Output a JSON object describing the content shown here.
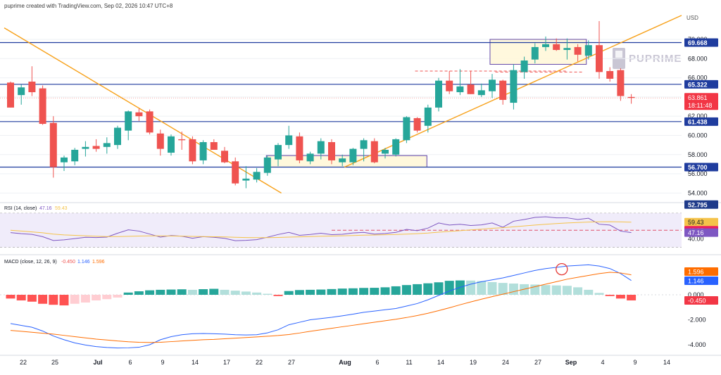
{
  "header": {
    "credit": "puprime created with TradingView.com, Sep 02, 2026 10:47 UTC+8"
  },
  "brand": {
    "name": "PUPRIME"
  },
  "price_panel": {
    "currency_label": "USD",
    "axis_ticks": [
      "54.000",
      "56.000",
      "58.000",
      "60.000",
      "62.000",
      "64.000",
      "66.000",
      "68.000",
      "70.000"
    ],
    "level_labels": [
      "69.668",
      "65.322",
      "61.438",
      "56.700",
      "52.795"
    ],
    "last_price": "63.861",
    "countdown": "18:11:48"
  },
  "rsi_panel": {
    "legend_title": "RSI (14, close)",
    "legend_values": [
      "47.16",
      "59.43"
    ],
    "axis_ticks": [
      "40.00"
    ],
    "value_labels": [
      "59.43",
      "49.97",
      "47.16"
    ]
  },
  "macd_panel": {
    "legend_title": "MACD (close, 12, 26, 9)",
    "legend_values": [
      "-0.450",
      "1.146",
      "1.596"
    ],
    "axis_ticks": [
      "0.000",
      "-2.000",
      "-4.000"
    ],
    "value_labels": [
      "1.596",
      "1.146",
      "-0.450"
    ]
  },
  "x_axis": {
    "labels": [
      "22",
      "25",
      "Jul",
      "6",
      "9",
      "14",
      "17",
      "22",
      "27",
      "Aug",
      "6",
      "11",
      "14",
      "19",
      "24",
      "27",
      "Sep",
      "4",
      "9",
      "14"
    ]
  },
  "colors": {
    "bull": "#26a69a",
    "bear": "#ef5350",
    "level_line": "#1f3c9e",
    "trendline": "#f7a11a",
    "rsi_line": "#7e57c2",
    "rsi_ma": "#f5c34a",
    "macd_line": "#2962ff",
    "signal_line": "#ff6d00",
    "box": "#5b3fa6"
  },
  "chart_data": [
    {
      "type": "candlestick",
      "x_start": "Jun 19",
      "x_end": "Sep 02",
      "ylim": [
        51.0,
        71.5
      ],
      "ohlc": [
        [
          65.5,
          65.6,
          62.9,
          62.9
        ],
        [
          64.2,
          65.3,
          63.2,
          65.0
        ],
        [
          65.6,
          67.2,
          64.1,
          64.5
        ],
        [
          64.9,
          65.2,
          61.1,
          61.2
        ],
        [
          61.3,
          62.0,
          55.6,
          56.7
        ],
        [
          57.2,
          57.9,
          56.3,
          57.7
        ],
        [
          57.3,
          58.7,
          56.9,
          58.5
        ],
        [
          58.6,
          59.4,
          57.8,
          58.8
        ],
        [
          58.9,
          59.6,
          58.3,
          58.6
        ],
        [
          58.8,
          59.8,
          58.1,
          59.2
        ],
        [
          59.0,
          61.0,
          58.6,
          60.8
        ],
        [
          60.5,
          62.6,
          59.5,
          62.5
        ],
        [
          62.4,
          62.8,
          61.5,
          62.0
        ],
        [
          62.5,
          62.7,
          60.1,
          60.3
        ],
        [
          60.2,
          60.6,
          57.9,
          58.6
        ],
        [
          58.2,
          60.1,
          57.9,
          59.9
        ],
        [
          59.6,
          60.4,
          58.5,
          59.5
        ],
        [
          59.6,
          59.9,
          57.0,
          57.3
        ],
        [
          57.4,
          59.5,
          57.0,
          59.3
        ],
        [
          59.3,
          59.6,
          58.5,
          58.5
        ],
        [
          58.4,
          58.8,
          57.1,
          57.2
        ],
        [
          57.3,
          57.7,
          54.8,
          55.0
        ],
        [
          55.3,
          56.8,
          54.5,
          55.5
        ],
        [
          55.4,
          56.6,
          55.1,
          56.2
        ],
        [
          56.1,
          57.9,
          55.8,
          57.7
        ],
        [
          57.5,
          59.2,
          56.8,
          59.0
        ],
        [
          59.0,
          61.0,
          58.6,
          60.0
        ],
        [
          59.9,
          60.3,
          57.1,
          57.4
        ],
        [
          57.3,
          58.3,
          57.0,
          58.1
        ],
        [
          58.1,
          59.7,
          57.5,
          59.4
        ],
        [
          59.3,
          59.6,
          57.0,
          57.4
        ],
        [
          57.2,
          58.0,
          56.8,
          57.6
        ],
        [
          57.2,
          58.7,
          56.9,
          58.6
        ],
        [
          58.6,
          59.7,
          57.3,
          59.5
        ],
        [
          59.4,
          59.7,
          57.1,
          57.2
        ],
        [
          58.1,
          58.7,
          57.6,
          58.5
        ],
        [
          58.0,
          59.7,
          57.8,
          59.6
        ],
        [
          59.5,
          62.0,
          59.2,
          61.9
        ],
        [
          61.8,
          61.9,
          60.3,
          60.5
        ],
        [
          61.0,
          63.2,
          60.3,
          62.9
        ],
        [
          62.9,
          66.0,
          62.5,
          65.7
        ],
        [
          65.7,
          66.7,
          64.3,
          64.6
        ],
        [
          64.5,
          66.9,
          64.2,
          65.1
        ],
        [
          65.3,
          66.7,
          64.3,
          64.3
        ],
        [
          64.2,
          65.4,
          64.0,
          64.7
        ],
        [
          64.6,
          66.4,
          63.9,
          65.8
        ],
        [
          65.7,
          65.8,
          63.2,
          63.7
        ],
        [
          63.4,
          67.4,
          62.7,
          66.8
        ],
        [
          66.6,
          68.2,
          65.9,
          67.8
        ],
        [
          67.9,
          69.6,
          67.5,
          69.2
        ],
        [
          69.2,
          70.3,
          68.8,
          69.5
        ],
        [
          69.5,
          70.1,
          68.8,
          68.9
        ],
        [
          68.9,
          70.1,
          67.9,
          69.1
        ],
        [
          69.2,
          69.5,
          67.7,
          68.4
        ],
        [
          68.3,
          69.9,
          67.9,
          69.4
        ],
        [
          69.4,
          71.9,
          65.9,
          66.6
        ],
        [
          66.7,
          67.1,
          65.6,
          65.9
        ],
        [
          66.8,
          67.0,
          63.6,
          64.1
        ],
        [
          64.0,
          64.3,
          63.3,
          63.9
        ]
      ]
    },
    {
      "type": "line",
      "name": "RSI (14, close)",
      "ylim": [
        28,
        74
      ],
      "series": [
        {
          "name": "RSI",
          "values": [
            47.2,
            46.0,
            45.1,
            42.5,
            38.0,
            38.8,
            40.2,
            41.8,
            41.5,
            42.0,
            46.5,
            50.5,
            49.0,
            45.5,
            42.0,
            43.8,
            43.0,
            40.6,
            42.5,
            41.8,
            40.5,
            37.8,
            38.2,
            39.0,
            41.8,
            45.0,
            47.5,
            44.0,
            45.0,
            46.5,
            44.8,
            45.3,
            46.8,
            47.5,
            45.5,
            46.2,
            47.5,
            51.0,
            49.5,
            52.5,
            58.5,
            56.0,
            57.0,
            55.5,
            56.2,
            58.5,
            53.5,
            60.5,
            62.5,
            65.0,
            65.7,
            64.5,
            64.5,
            62.5,
            64.0,
            57.0,
            56.0,
            49.0,
            47.2
          ]
        },
        {
          "name": "RSI-based MA",
          "values": [
            50.0,
            49.0,
            48.0,
            47.0,
            45.5,
            44.5,
            44.0,
            43.5,
            43.0,
            42.6,
            42.6,
            42.9,
            43.2,
            43.4,
            43.4,
            43.3,
            43.1,
            42.8,
            42.6,
            42.4,
            42.2,
            41.8,
            41.5,
            41.3,
            41.3,
            41.6,
            42.0,
            42.3,
            42.6,
            43.0,
            43.2,
            43.5,
            43.8,
            44.2,
            44.4,
            44.7,
            45.0,
            45.5,
            46.0,
            46.7,
            47.7,
            48.6,
            49.5,
            50.4,
            51.2,
            52.2,
            53.0,
            54.0,
            55.0,
            56.0,
            57.0,
            57.8,
            58.5,
            59.0,
            59.5,
            59.8,
            59.9,
            59.7,
            59.4
          ]
        }
      ],
      "reference_level": 50
    },
    {
      "type": "line",
      "name": "MACD (close, 12, 26, 9)",
      "ylim": [
        -4.5,
        2.6
      ],
      "series": [
        {
          "name": "MACD",
          "values": [
            -2.3,
            -2.45,
            -2.6,
            -2.9,
            -3.3,
            -3.6,
            -3.85,
            -4.02,
            -4.15,
            -4.22,
            -4.26,
            -4.25,
            -4.2,
            -4.0,
            -3.6,
            -3.35,
            -3.2,
            -3.12,
            -3.1,
            -3.12,
            -3.15,
            -3.2,
            -3.22,
            -3.2,
            -3.05,
            -2.8,
            -2.4,
            -2.2,
            -2.0,
            -1.9,
            -1.8,
            -1.68,
            -1.55,
            -1.4,
            -1.3,
            -1.2,
            -1.1,
            -0.9,
            -0.7,
            -0.4,
            -0.05,
            0.3,
            0.6,
            0.85,
            1.05,
            1.2,
            1.35,
            1.55,
            1.75,
            1.95,
            2.1,
            2.2,
            2.3,
            2.35,
            2.4,
            2.3,
            2.1,
            1.7,
            1.146
          ]
        },
        {
          "name": "Signal",
          "values": [
            -2.85,
            -2.92,
            -3.0,
            -3.08,
            -3.15,
            -3.25,
            -3.35,
            -3.45,
            -3.55,
            -3.62,
            -3.7,
            -3.76,
            -3.8,
            -3.82,
            -3.8,
            -3.75,
            -3.7,
            -3.65,
            -3.6,
            -3.57,
            -3.52,
            -3.47,
            -3.42,
            -3.37,
            -3.32,
            -3.26,
            -3.18,
            -3.06,
            -2.92,
            -2.8,
            -2.68,
            -2.56,
            -2.44,
            -2.32,
            -2.2,
            -2.08,
            -1.96,
            -1.82,
            -1.66,
            -1.48,
            -1.27,
            -1.04,
            -0.8,
            -0.57,
            -0.35,
            -0.15,
            0.05,
            0.25,
            0.45,
            0.65,
            0.85,
            1.05,
            1.25,
            1.4,
            1.55,
            1.7,
            1.8,
            1.75,
            1.596
          ]
        },
        {
          "name": "Histogram",
          "values": [
            -0.3,
            -0.45,
            -0.55,
            -0.72,
            -0.8,
            -0.85,
            -0.72,
            -0.62,
            -0.45,
            -0.35,
            -0.22,
            0.18,
            0.28,
            0.36,
            0.4,
            0.42,
            0.44,
            0.4,
            0.45,
            0.48,
            0.4,
            0.33,
            0.26,
            0.18,
            0.08,
            -0.1,
            0.3,
            0.38,
            0.4,
            0.42,
            0.46,
            0.5,
            0.52,
            0.55,
            0.56,
            0.6,
            0.68,
            0.78,
            0.85,
            0.92,
            1.0,
            1.12,
            1.15,
            1.14,
            1.1,
            1.02,
            0.95,
            0.9,
            0.85,
            0.82,
            0.78,
            0.75,
            0.72,
            0.6,
            0.4,
            0.15,
            -0.1,
            -0.3,
            -0.45
          ]
        }
      ],
      "annotation": "circle at MACD/signal cross"
    }
  ]
}
